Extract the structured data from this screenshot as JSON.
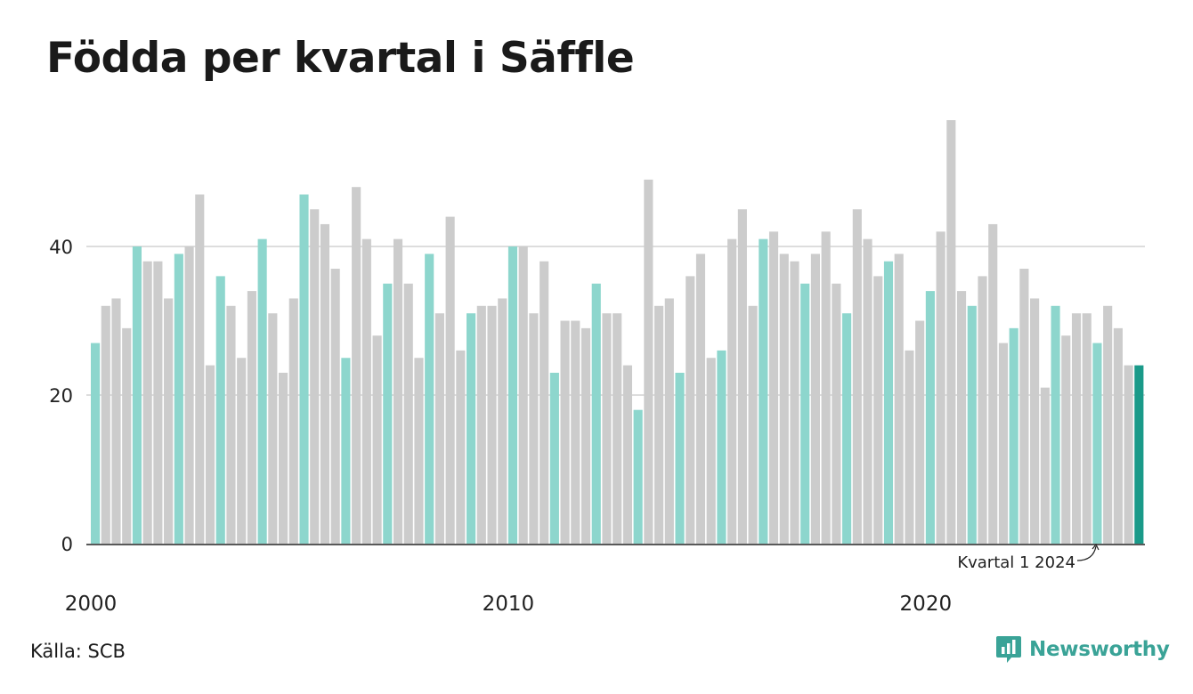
{
  "title": "Födda per kvartal i Säffle",
  "source": "Källa: SCB",
  "brand": {
    "name": "Newsworthy",
    "icon": "newsworthy-logo-icon"
  },
  "colors": {
    "q1": "#8dd6cd",
    "other": "#cccccc",
    "highlight": "#1a9a89",
    "grid": "#dddddd",
    "axis": "#222222",
    "brand": "#3aa397"
  },
  "chart_data": {
    "type": "bar",
    "title": "Födda per kvartal i Säffle",
    "start_year": 2000,
    "values": [
      27,
      32,
      33,
      29,
      40,
      38,
      38,
      33,
      39,
      40,
      47,
      24,
      36,
      32,
      25,
      34,
      41,
      31,
      23,
      33,
      47,
      45,
      43,
      37,
      25,
      48,
      41,
      28,
      35,
      41,
      35,
      25,
      39,
      31,
      44,
      26,
      31,
      32,
      32,
      33,
      40,
      40,
      31,
      38,
      23,
      30,
      30,
      29,
      35,
      31,
      31,
      24,
      18,
      49,
      32,
      33,
      23,
      36,
      39,
      25,
      26,
      41,
      45,
      32,
      41,
      42,
      39,
      38,
      35,
      39,
      42,
      35,
      31,
      45,
      41,
      36,
      38,
      39,
      26,
      30,
      34,
      42,
      57,
      34,
      32,
      36,
      43,
      27,
      29,
      37,
      33,
      21,
      32,
      28,
      31,
      31,
      27,
      32,
      29,
      24,
      24
    ],
    "ylim": [
      0,
      57
    ],
    "yticks": [
      0,
      20,
      40
    ],
    "xtick_labels": [
      "2000",
      "2010",
      "2020"
    ],
    "grid": true,
    "annotation": "Kvartal 1 2024"
  }
}
